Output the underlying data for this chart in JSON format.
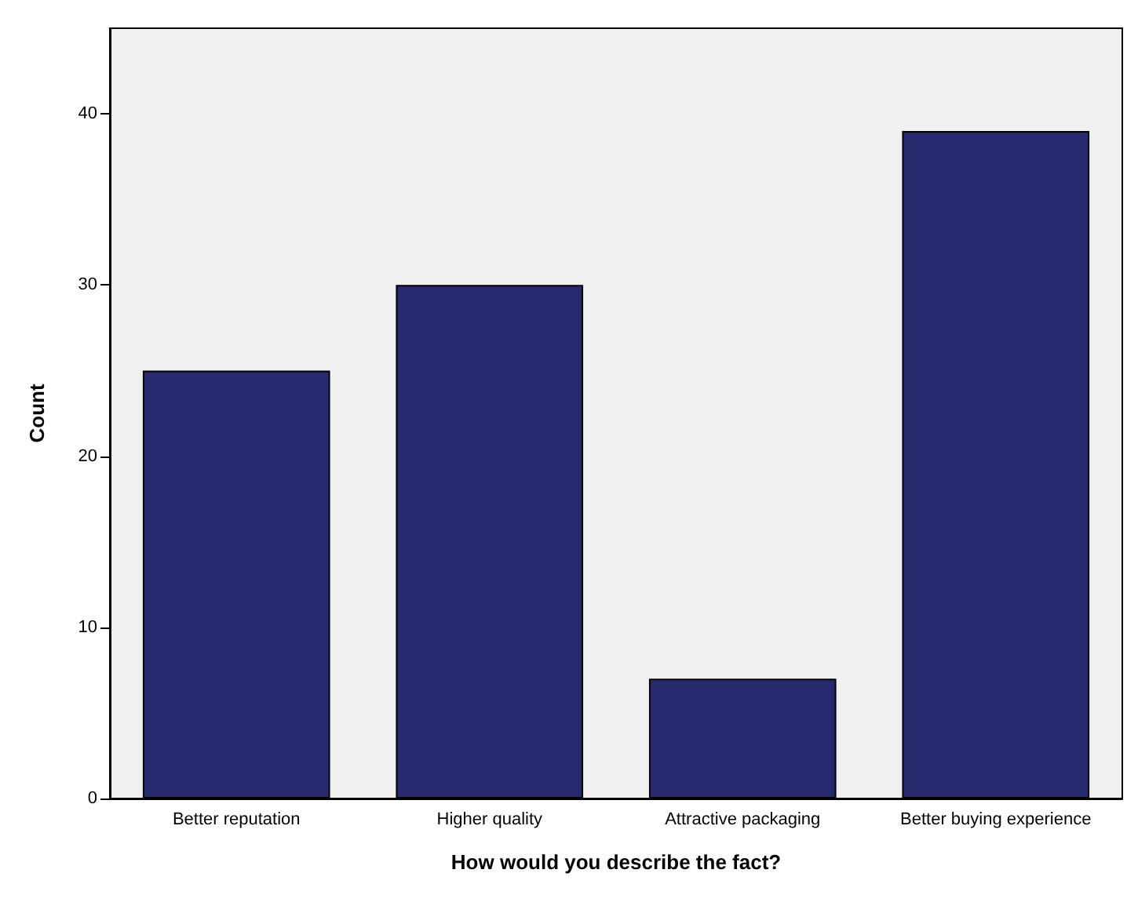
{
  "chart_data": {
    "type": "bar",
    "categories": [
      "Better reputation",
      "Higher quality",
      "Attractive packaging",
      "Better buying experience"
    ],
    "values": [
      25,
      30,
      7,
      39
    ],
    "color": "#272a6f",
    "xlabel": "How would you describe the fact?",
    "ylabel": "Count",
    "ylim": [
      0,
      45
    ],
    "yticks": [
      0,
      10,
      20,
      30,
      40
    ],
    "grid": false
  }
}
